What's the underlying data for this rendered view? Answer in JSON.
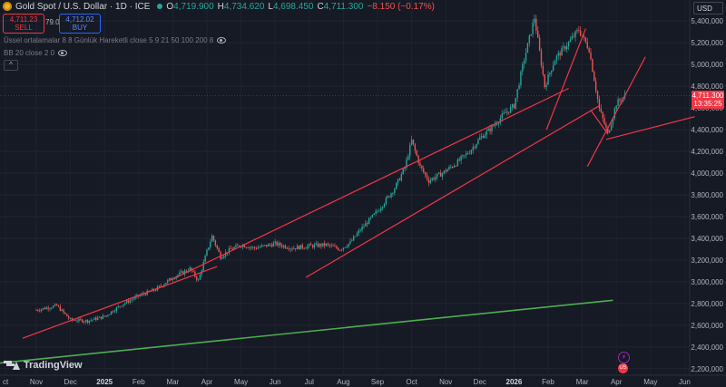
{
  "header": {
    "title": "Gold Spot / U.S. Dollar · 1D · ICE",
    "open": "4,719.900",
    "high": "4,734.620",
    "low": "4,698.450",
    "close": "4,711.300",
    "change": "−8.150 (−0.17%)",
    "o_label": "O",
    "h_label": "H",
    "l_label": "L",
    "c_label": "C"
  },
  "trade": {
    "sell_price": "4,711.23",
    "sell_label": "SELL",
    "buy_price": "4,712.02",
    "buy_label": "BUY",
    "spread": "79.0"
  },
  "indicators": [
    "Üssel ortalamalar 8 8 Günlük Hareketli close 5 9 21 50 100 200 8",
    "BB 20 close 2 0"
  ],
  "collapse_label": "^",
  "currency": "USD",
  "price_tag": {
    "price": "4,711.300",
    "timer": "13:35:25"
  },
  "logo_text": "TradingView",
  "colors": {
    "background": "#161a25",
    "up": "#26a69a",
    "down": "#ef5350",
    "trendline": "#f23645",
    "green_line": "#4caf50"
  },
  "chart_data": {
    "type": "candlestick",
    "y_axis_ticks": [
      2200,
      2400,
      2600,
      2800,
      3000,
      3200,
      3400,
      3600,
      3800,
      4000,
      4200,
      4400,
      4600,
      4800,
      5000,
      5200,
      5400
    ],
    "y_tick_labels": [
      "2,200,000",
      "2,400,000",
      "2,600,000",
      "2,800,000",
      "3,000,000",
      "3,200,000",
      "3,400,000",
      "3,600,000",
      "3,800,000",
      "4,000,000",
      "4,200,000",
      "4,400,000",
      "4,600,000",
      "4,800,000",
      "5,000,000",
      "5,200,000",
      "5,400,000"
    ],
    "ylim": [
      2140,
      5560
    ],
    "x_axis_labels": [
      "ct",
      "Nov",
      "Dec",
      "2025",
      "Feb",
      "Mar",
      "Apr",
      "May",
      "Jun",
      "Jul",
      "Aug",
      "Sep",
      "Oct",
      "Nov",
      "Dec",
      "2026",
      "Feb",
      "Mar",
      "Apr",
      "May",
      "Jun"
    ],
    "x_axis_label_months": [
      -0.9,
      0,
      1,
      2,
      3,
      4,
      5,
      6,
      7,
      8,
      9,
      10,
      11,
      12,
      13,
      14,
      15,
      16,
      17,
      18,
      19
    ],
    "price_path": [
      [
        0,
        2740
      ],
      [
        0.6,
        2780
      ],
      [
        1.0,
        2650
      ],
      [
        1.5,
        2640
      ],
      [
        2.0,
        2680
      ],
      [
        2.5,
        2790
      ],
      [
        3.0,
        2870
      ],
      [
        3.5,
        2930
      ],
      [
        4.0,
        3040
      ],
      [
        4.5,
        3120
      ],
      [
        4.75,
        3010
      ],
      [
        5.0,
        3280
      ],
      [
        5.15,
        3420
      ],
      [
        5.4,
        3230
      ],
      [
        5.7,
        3300
      ],
      [
        6.0,
        3340
      ],
      [
        6.4,
        3310
      ],
      [
        7.0,
        3350
      ],
      [
        7.5,
        3310
      ],
      [
        8.0,
        3330
      ],
      [
        8.5,
        3340
      ],
      [
        8.9,
        3300
      ],
      [
        9.2,
        3360
      ],
      [
        9.5,
        3480
      ],
      [
        10.0,
        3650
      ],
      [
        10.5,
        3860
      ],
      [
        10.8,
        4050
      ],
      [
        11.0,
        4300
      ],
      [
        11.25,
        4060
      ],
      [
        11.5,
        3930
      ],
      [
        11.9,
        4000
      ],
      [
        12.3,
        4090
      ],
      [
        12.7,
        4200
      ],
      [
        13.0,
        4320
      ],
      [
        13.35,
        4420
      ],
      [
        13.7,
        4540
      ],
      [
        14.0,
        4620
      ],
      [
        14.3,
        5050
      ],
      [
        14.6,
        5430
      ],
      [
        14.9,
        4800
      ],
      [
        15.2,
        5050
      ],
      [
        15.6,
        5200
      ],
      [
        15.9,
        5320
      ],
      [
        16.2,
        5140
      ],
      [
        16.5,
        4590
      ],
      [
        16.75,
        4360
      ],
      [
        17.0,
        4640
      ],
      [
        17.25,
        4711
      ]
    ],
    "trendlines": [
      {
        "from": [
          -0.4,
          2480
        ],
        "to": [
          5.3,
          3140
        ]
      },
      {
        "from": [
          3.9,
          3010
        ],
        "to": [
          15.6,
          4780
        ]
      },
      {
        "from": [
          7.9,
          3040
        ],
        "to": [
          16.5,
          4620
        ]
      },
      {
        "from": [
          14.95,
          4400
        ],
        "to": [
          16.1,
          5330
        ]
      },
      {
        "from": [
          16.15,
          4060
        ],
        "to": [
          17.85,
          5070
        ]
      },
      {
        "from": [
          16.25,
          4580
        ],
        "to": [
          16.75,
          4360
        ]
      },
      {
        "from": [
          16.7,
          4310
        ],
        "to": [
          19.3,
          4520
        ]
      }
    ],
    "green_line": {
      "from": [
        -3.0,
        2190
      ],
      "to": [
        16.9,
        2830
      ]
    },
    "last_price": 4711.3
  }
}
